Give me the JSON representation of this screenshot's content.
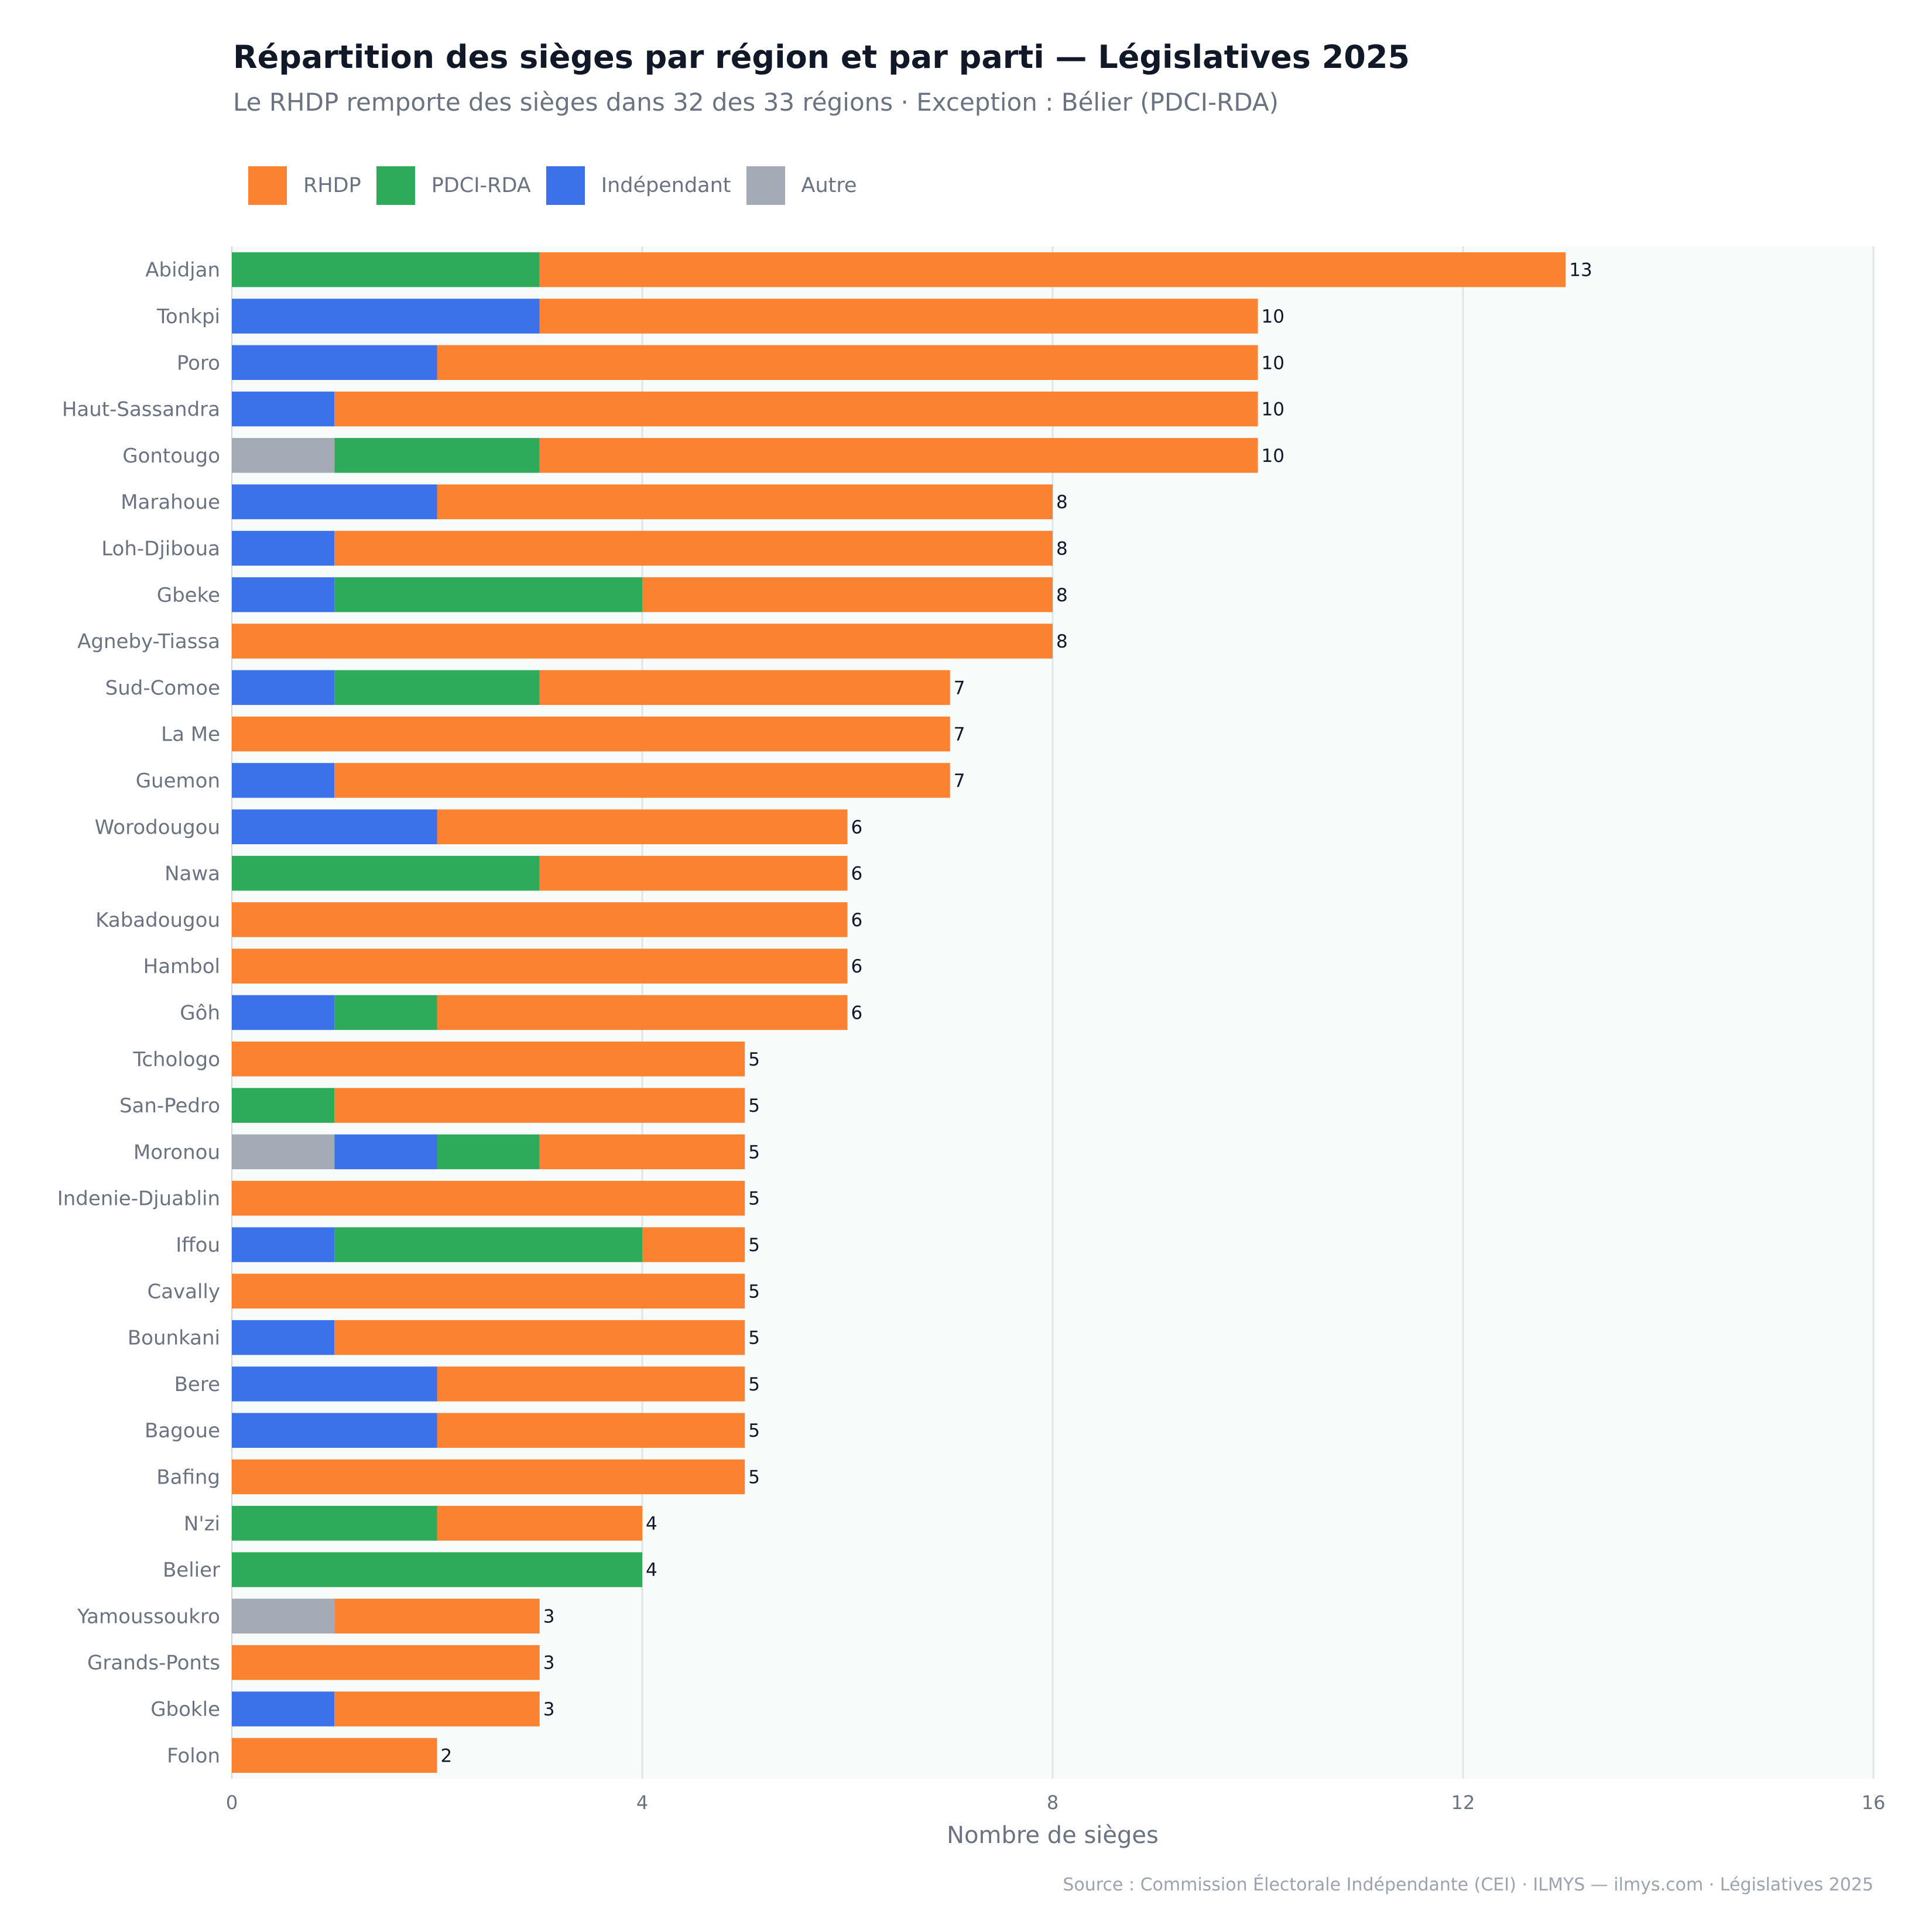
{
  "chart_data": {
    "type": "bar",
    "orientation": "horizontal",
    "stacked": true,
    "title": "Répartition des sièges par région et par parti — Législatives 2025",
    "subtitle": "Le RHDP remporte des sièges dans 32 des 33 régions · Exception : Bélier (PDCI-RDA)",
    "xlabel": "Nombre de sièges",
    "ylabel": "",
    "xlim": [
      0,
      16
    ],
    "xticks": [
      0,
      4,
      8,
      12,
      16
    ],
    "grid": true,
    "legend_position": "top-left",
    "categories": [
      "Abidjan",
      "Tonkpi",
      "Poro",
      "Haut-Sassandra",
      "Gontougo",
      "Marahoue",
      "Loh-Djiboua",
      "Gbeke",
      "Agneby-Tiassa",
      "Sud-Comoe",
      "La Me",
      "Guemon",
      "Worodougou",
      "Nawa",
      "Kabadougou",
      "Hambol",
      "Gôh",
      "Tchologo",
      "San-Pedro",
      "Moronou",
      "Indenie-Djuablin",
      "Iffou",
      "Cavally",
      "Bounkani",
      "Bere",
      "Bagoue",
      "Bafing",
      "N'zi",
      "Belier",
      "Yamoussoukro",
      "Grands-Ponts",
      "Gbokle",
      "Folon"
    ],
    "series": [
      {
        "name": "Autre",
        "color": "#a5abb6",
        "values": [
          0,
          0,
          0,
          0,
          1,
          0,
          0,
          0,
          0,
          0,
          0,
          0,
          0,
          0,
          0,
          0,
          0,
          0,
          0,
          1,
          0,
          0,
          0,
          0,
          0,
          0,
          0,
          0,
          0,
          1,
          0,
          0,
          0
        ]
      },
      {
        "name": "Indépendant",
        "color": "#3b72e9",
        "values": [
          0,
          3,
          2,
          1,
          0,
          2,
          1,
          1,
          0,
          1,
          0,
          1,
          2,
          0,
          0,
          0,
          1,
          0,
          0,
          1,
          0,
          1,
          0,
          1,
          2,
          2,
          0,
          0,
          0,
          0,
          0,
          1,
          0
        ]
      },
      {
        "name": "PDCI-RDA",
        "color": "#2eab5a",
        "values": [
          3,
          0,
          0,
          0,
          2,
          0,
          0,
          3,
          0,
          2,
          0,
          0,
          0,
          3,
          0,
          0,
          1,
          0,
          1,
          1,
          0,
          3,
          0,
          0,
          0,
          0,
          0,
          2,
          4,
          0,
          0,
          0,
          0
        ]
      },
      {
        "name": "RHDP",
        "color": "#fa8231",
        "values": [
          10,
          7,
          8,
          9,
          7,
          6,
          7,
          4,
          8,
          4,
          7,
          6,
          4,
          3,
          6,
          6,
          4,
          5,
          4,
          2,
          5,
          1,
          5,
          4,
          3,
          3,
          5,
          2,
          0,
          2,
          3,
          2,
          2
        ]
      }
    ],
    "totals": [
      13,
      10,
      10,
      10,
      10,
      8,
      8,
      8,
      8,
      7,
      7,
      7,
      6,
      6,
      6,
      6,
      6,
      5,
      5,
      5,
      5,
      5,
      5,
      5,
      5,
      5,
      5,
      4,
      4,
      3,
      3,
      3,
      2
    ],
    "legend_order": [
      "RHDP",
      "PDCI-RDA",
      "Indépendant",
      "Autre"
    ]
  },
  "footer": "Source : Commission Électorale Indépendante (CEI)  ·  ILMYS — ilmys.com  ·  Législatives 2025",
  "colors": {
    "plot_background": "#f7fbfa",
    "grid": "#dfe5e5"
  }
}
